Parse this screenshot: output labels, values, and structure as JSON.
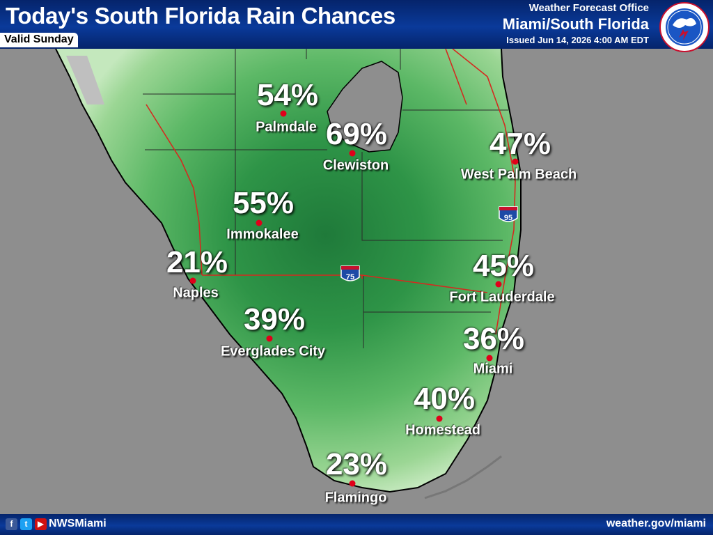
{
  "header": {
    "title": "Today's South Florida Rain Chances",
    "valid": "Valid Sunday",
    "office_line1": "Weather Forecast Office",
    "office_line2": "Miami/South Florida",
    "issued": "Issued Jun 14, 2026 4:00 AM EDT",
    "logo_icon": "nws-logo-icon"
  },
  "footer": {
    "handle": "NWSMiami",
    "website": "weather.gov/miami",
    "icons": [
      "facebook-icon",
      "twitter-icon",
      "youtube-icon"
    ]
  },
  "interstates": {
    "i75": "75",
    "i95": "95"
  },
  "locations": [
    {
      "name": "Palmdale",
      "chance": "54%"
    },
    {
      "name": "Clewiston",
      "chance": "69%"
    },
    {
      "name": "West Palm Beach",
      "chance": "47%"
    },
    {
      "name": "Immokalee",
      "chance": "55%"
    },
    {
      "name": "Naples",
      "chance": "21%"
    },
    {
      "name": "Fort Lauderdale",
      "chance": "45%"
    },
    {
      "name": "Everglades City",
      "chance": "39%"
    },
    {
      "name": "Miami",
      "chance": "36%"
    },
    {
      "name": "Homestead",
      "chance": "40%"
    },
    {
      "name": "Flamingo",
      "chance": "23%"
    }
  ],
  "colors": {
    "background": "#8e8e8e",
    "header": "#0a3a9a",
    "rain_dark": "#1f7a3a",
    "rain_light": "#a6dda0",
    "city_dot": "#e0001a",
    "roads": "#d42a1f"
  }
}
